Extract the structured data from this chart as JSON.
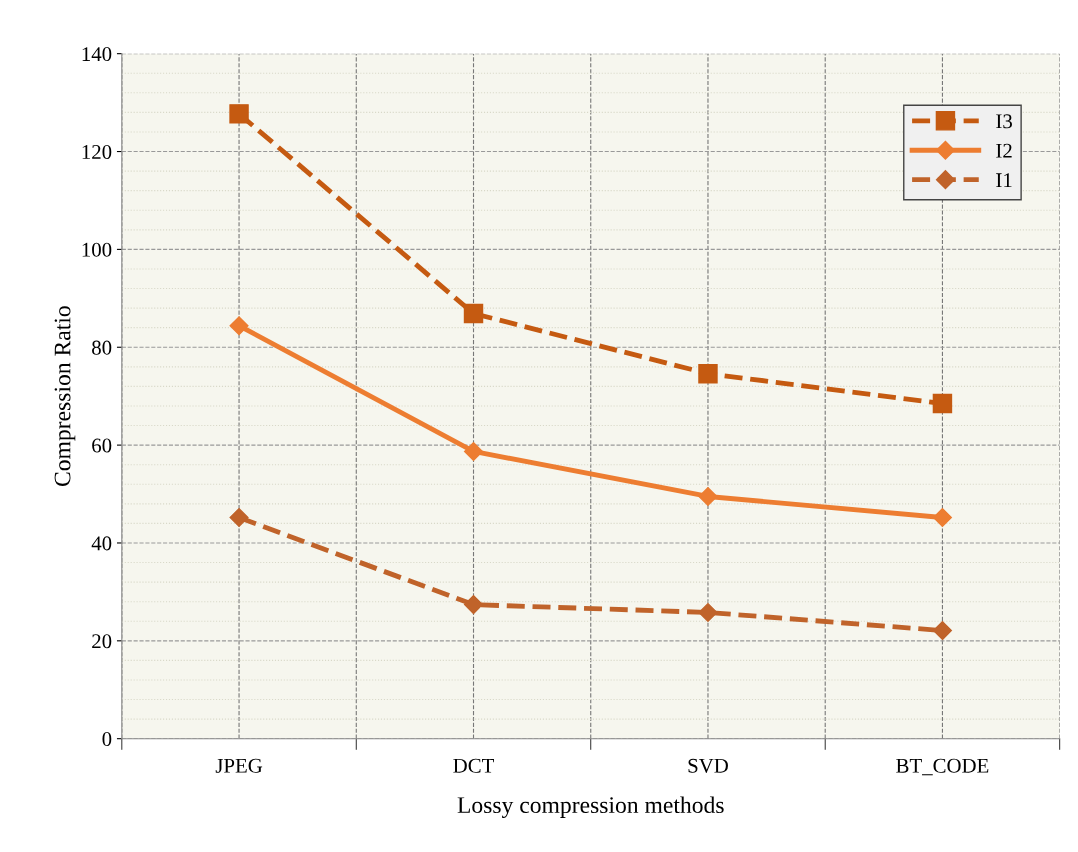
{
  "chart_data": {
    "type": "line",
    "xlabel": "Lossy compression methods",
    "ylabel": "Compression Ratio",
    "categories": [
      "JPEG",
      "DCT",
      "SVD",
      "BT_CODE"
    ],
    "series": [
      {
        "name": "I3",
        "color": "#c55a11",
        "values": [
          127.7,
          86.9,
          74.6,
          68.5
        ],
        "marker": "square",
        "line_style": "dashed"
      },
      {
        "name": "I2",
        "color": "#ed7d31",
        "values": [
          84.4,
          58.7,
          49.5,
          45.2
        ],
        "marker": "diamond",
        "line_style": "solid"
      },
      {
        "name": "I1",
        "color": "#c0632a",
        "values": [
          45.2,
          27.4,
          25.8,
          22.1
        ],
        "marker": "diamond",
        "line_style": "dashed"
      }
    ],
    "ylim": [
      0,
      140
    ],
    "yticks": [
      0,
      20,
      40,
      60,
      80,
      100,
      120,
      140
    ],
    "grid": true,
    "legend": "top right"
  }
}
